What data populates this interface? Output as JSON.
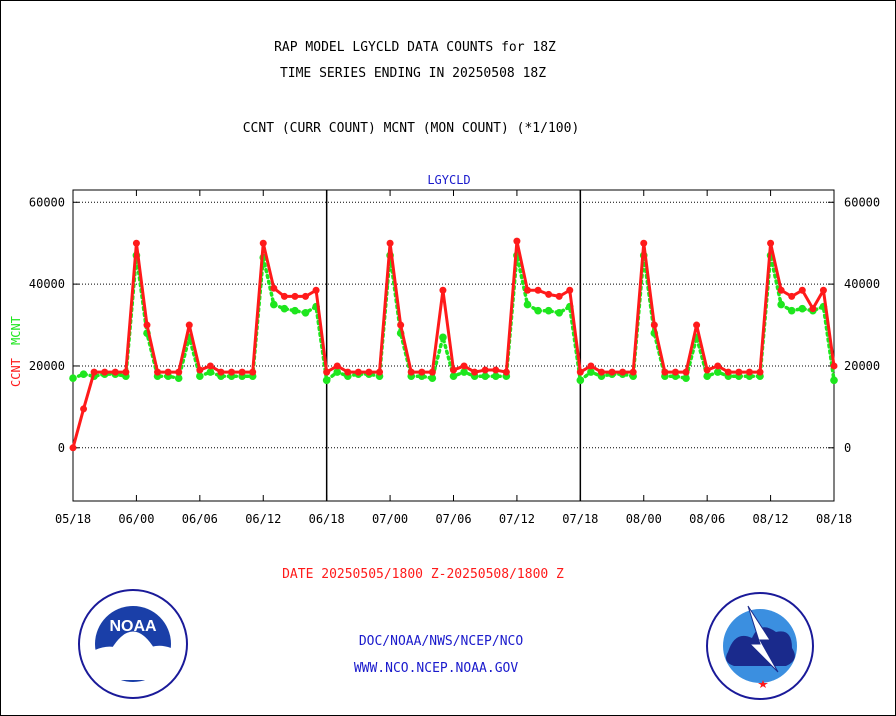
{
  "title_line1": "RAP MODEL LGYCLD DATA COUNTS for 18Z",
  "title_line2": "TIME SERIES ENDING IN 20250508 18Z",
  "subtitle": "CCNT (CURR COUNT) MCNT (MON COUNT) (*1/100)",
  "date_range": "DATE 20250505/1800 Z-20250508/1800 Z",
  "footer_line1": "DOC/NOAA/NWS/NCEP/NCO",
  "footer_line2": "WWW.NCO.NCEP.NOAA.GOV",
  "logos": {
    "left_text": "NOAA",
    "left_ring": "NATIONAL OCEANIC AND ATMOSPHERIC ADMINISTRATION · U.S. DEPARTMENT OF COMMERCE",
    "right_ring": "NATIONAL WEATHER SERVICE"
  },
  "colors": {
    "ccnt": "#ff1a1a",
    "mcnt": "#1ee61e",
    "title": "#000000",
    "footer": "#1a1acc",
    "plot_title": "#1a1acc"
  },
  "chart_data": {
    "type": "line",
    "plot_title": "LGYCLD",
    "ylabel_left_ccnt": "CCNT",
    "ylabel_left_mcnt": "MCNT",
    "ylim": [
      -13000,
      63000
    ],
    "yticks": [
      0,
      20000,
      40000,
      60000
    ],
    "ytick_labels": [
      "0",
      "20000",
      "40000",
      "60000"
    ],
    "xlim": [
      0,
      72
    ],
    "xticks": [
      0,
      6,
      12,
      18,
      24,
      30,
      36,
      42,
      48,
      54,
      60,
      66,
      72
    ],
    "xtick_labels": [
      "05/18",
      "06/00",
      "06/06",
      "06/12",
      "06/18",
      "07/00",
      "07/06",
      "07/12",
      "07/18",
      "08/00",
      "08/06",
      "08/12",
      "08/18"
    ],
    "day_dividers": [
      24,
      48
    ],
    "grid": "horizontal dotted",
    "series": [
      {
        "name": "CCNT",
        "values": [
          0,
          9500,
          18500,
          18500,
          18500,
          18500,
          50000,
          30000,
          18500,
          18500,
          18500,
          30000,
          19000,
          20000,
          18500,
          18500,
          18500,
          18500,
          50000,
          39000,
          37000,
          37000,
          37000,
          38500,
          18500,
          20000,
          18500,
          18500,
          18500,
          18500,
          50000,
          30000,
          18500,
          18500,
          18500,
          38500,
          19000,
          20000,
          18500,
          19000,
          19000,
          18500,
          50500,
          38500,
          38500,
          37500,
          37000,
          38500,
          18500,
          20000,
          18500,
          18500,
          18500,
          18500,
          50000,
          30000,
          18500,
          18500,
          18500,
          30000,
          19000,
          20000,
          18500,
          18500,
          18500,
          18500,
          50000,
          38500,
          37000,
          38500,
          34000,
          38500,
          20000
        ]
      },
      {
        "name": "MCNT",
        "values": [
          17000,
          18000,
          17500,
          18000,
          18000,
          17500,
          47000,
          28000,
          17500,
          17500,
          17000,
          27000,
          17500,
          18500,
          17500,
          17500,
          17500,
          17500,
          46500,
          35000,
          34000,
          33500,
          33000,
          34500,
          16500,
          18500,
          17500,
          18000,
          18000,
          17500,
          47000,
          28000,
          17500,
          17500,
          17000,
          27000,
          17500,
          18500,
          17500,
          17500,
          17500,
          17500,
          47000,
          35000,
          33500,
          33500,
          33000,
          34500,
          16500,
          18500,
          17500,
          18000,
          18000,
          17500,
          47000,
          28000,
          17500,
          17500,
          17000,
          27000,
          17500,
          18500,
          17500,
          17500,
          17500,
          17500,
          47000,
          35000,
          33500,
          34000,
          33500,
          34500,
          16500
        ]
      }
    ]
  }
}
